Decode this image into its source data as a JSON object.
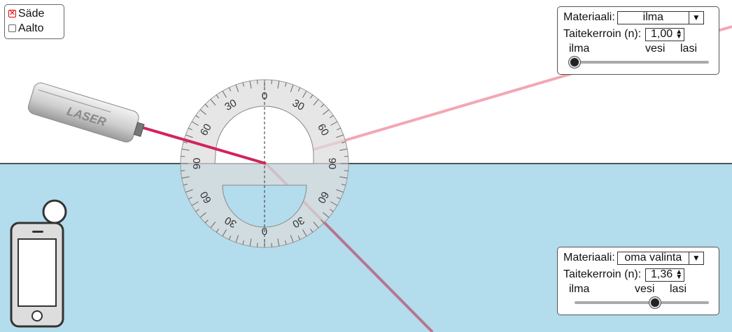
{
  "mode": {
    "ray": {
      "label": "Säde",
      "checked": true
    },
    "wave": {
      "label": "Aalto",
      "checked": false
    }
  },
  "protractor": {
    "labels_top": [
      "30",
      "0",
      "30",
      "60",
      "90",
      "60",
      "90"
    ],
    "labels_bottom": [
      "60",
      "30",
      "0",
      "30",
      "60"
    ]
  },
  "laser": {
    "label": "LASER"
  },
  "top_medium": {
    "material_label": "Materiaali:",
    "material_value": "ilma",
    "index_label": "Taitekerroin (n):",
    "index_value": "1,00",
    "tick_air": "ilma",
    "tick_water": "vesi",
    "tick_glass": "lasi",
    "slider_fraction": 0.0
  },
  "bottom_medium": {
    "material_label": "Materiaali:",
    "material_value": "oma valinta",
    "index_label": "Taitekerroin (n):",
    "index_value": "1,36",
    "tick_air": "ilma",
    "tick_water": "vesi",
    "tick_glass": "lasi",
    "slider_fraction": 0.6
  },
  "colors": {
    "water": "#b3dcec",
    "beam_incident": "#d2245a",
    "beam_reflected": "#f3a7b2",
    "beam_refracted": "#b76d84"
  },
  "icons": {
    "laser": "laser-icon",
    "intensity_meter": "intensity-meter-icon",
    "dropdown": "chevron-down-icon",
    "spinner": "up-down-arrows-icon"
  }
}
